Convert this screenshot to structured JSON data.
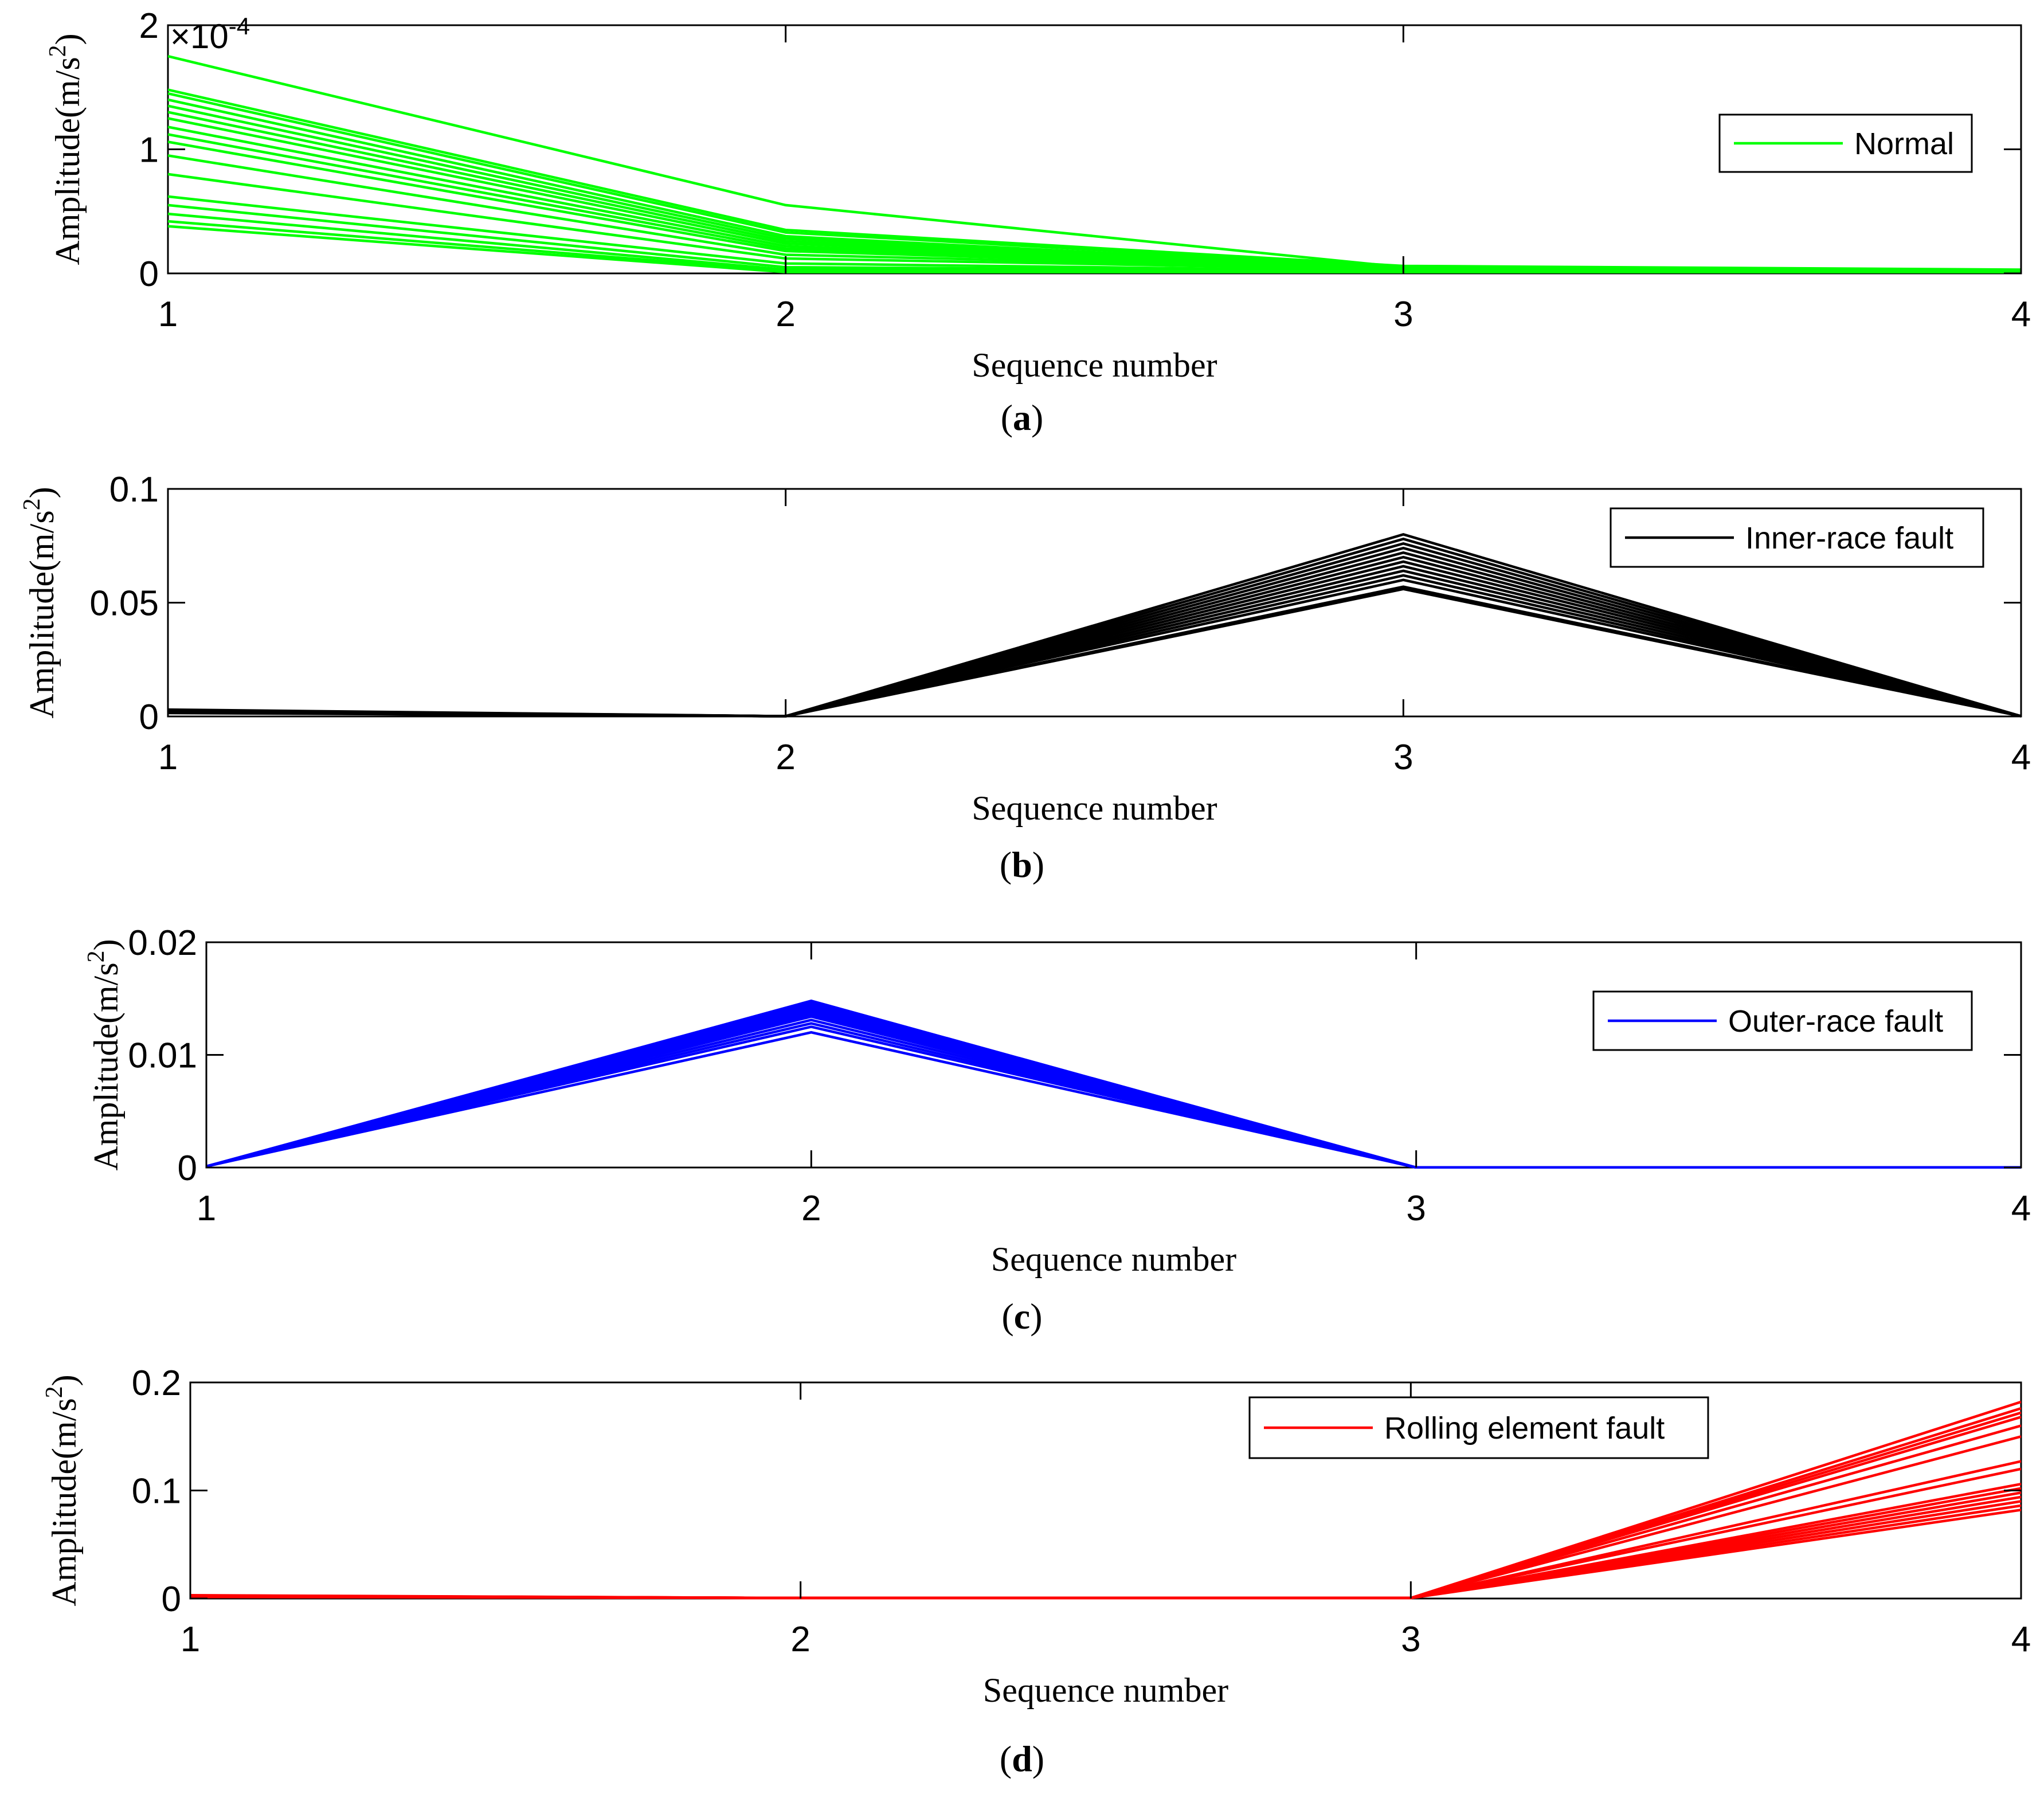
{
  "figure": {
    "captions": [
      {
        "open": "(",
        "letter": "a",
        "close": ")"
      },
      {
        "open": "(",
        "letter": "b",
        "close": ")"
      },
      {
        "open": "(",
        "letter": "c",
        "close": ")"
      },
      {
        "open": "(",
        "letter": "d",
        "close": ")"
      }
    ]
  },
  "chart_data": [
    {
      "type": "line",
      "panel": "a",
      "title": "",
      "xlabel": "Sequence number",
      "ylabel": {
        "prefix": "Amplitude(m/s",
        "sup": "2",
        "suffix": ")"
      },
      "x": [
        1,
        2,
        3,
        4
      ],
      "xticks": [
        "1",
        "2",
        "3",
        "4"
      ],
      "ylim": [
        0,
        0.0002
      ],
      "yticks": [
        {
          "v": 0,
          "label": "0"
        },
        {
          "v": 0.0001,
          "label": "1"
        },
        {
          "v": 0.0002,
          "label": "2"
        }
      ],
      "y_exponent": {
        "base": "×10",
        "power": "-4"
      },
      "legend": {
        "label": "Normal",
        "position": "top-right"
      },
      "color": "#00ff00",
      "series": [
        {
          "values": [
            0.000175,
            5.5e-05,
            5e-06,
            2e-06
          ]
        },
        {
          "values": [
            0.000148,
            3.5e-05,
            6e-06,
            3e-06
          ]
        },
        {
          "values": [
            0.000145,
            3.3e-05,
            5e-06,
            2e-06
          ]
        },
        {
          "values": [
            0.00014,
            3e-05,
            4e-06,
            2e-06
          ]
        },
        {
          "values": [
            0.000135,
            2.8e-05,
            5e-06,
            2e-06
          ]
        },
        {
          "values": [
            0.00013,
            2.6e-05,
            4e-06,
            2e-06
          ]
        },
        {
          "values": [
            0.000125,
            2.4e-05,
            4e-06,
            2e-06
          ]
        },
        {
          "values": [
            0.000118,
            2.2e-05,
            3e-06,
            2e-06
          ]
        },
        {
          "values": [
            0.000112,
            2e-05,
            4e-06,
            2e-06
          ]
        },
        {
          "values": [
            0.000106,
            1.8e-05,
            3e-06,
            1e-06
          ]
        },
        {
          "values": [
            9.5e-05,
            1.5e-05,
            3e-06,
            1e-06
          ]
        },
        {
          "values": [
            8e-05,
            1.2e-05,
            3e-06,
            1e-06
          ]
        },
        {
          "values": [
            6.2e-05,
            8e-06,
            2e-06,
            1e-06
          ]
        },
        {
          "values": [
            5.5e-05,
            5e-06,
            2e-06,
            1e-06
          ]
        },
        {
          "values": [
            4.8e-05,
            3e-06,
            2e-06,
            1e-06
          ]
        },
        {
          "values": [
            4.2e-05,
            2e-06,
            1e-06,
            1e-06
          ]
        },
        {
          "values": [
            3.8e-05,
            1e-06,
            1e-06,
            1e-06
          ]
        }
      ]
    },
    {
      "type": "line",
      "panel": "b",
      "title": "",
      "xlabel": "Sequence number",
      "ylabel": {
        "prefix": "Amplitude(m/s",
        "sup": "2",
        "suffix": ")"
      },
      "x": [
        1,
        2,
        3,
        4
      ],
      "xticks": [
        "1",
        "2",
        "3",
        "4"
      ],
      "ylim": [
        0,
        0.1
      ],
      "yticks": [
        {
          "v": 0,
          "label": "0"
        },
        {
          "v": 0.05,
          "label": "0.05"
        },
        {
          "v": 0.1,
          "label": "0.1"
        }
      ],
      "legend": {
        "label": "Inner-race fault",
        "position": "top-right"
      },
      "color": "#000000",
      "series": [
        {
          "values": [
            0.003,
            0.0001,
            0.08,
            0.0001
          ]
        },
        {
          "values": [
            0.0028,
            0.0001,
            0.078,
            0.0001
          ]
        },
        {
          "values": [
            0.0026,
            0.0001,
            0.076,
            0.0001
          ]
        },
        {
          "values": [
            0.0025,
            0.0001,
            0.074,
            0.0001
          ]
        },
        {
          "values": [
            0.0024,
            0.0001,
            0.072,
            0.0001
          ]
        },
        {
          "values": [
            0.0022,
            0.0001,
            0.07,
            0.0001
          ]
        },
        {
          "values": [
            0.0021,
            0.0001,
            0.068,
            0.0001
          ]
        },
        {
          "values": [
            0.002,
            0.0001,
            0.066,
            0.0001
          ]
        },
        {
          "values": [
            0.0019,
            0.0001,
            0.064,
            0.0001
          ]
        },
        {
          "values": [
            0.0018,
            0.0001,
            0.062,
            0.0001
          ]
        },
        {
          "values": [
            0.0017,
            0.0001,
            0.06,
            0.0001
          ]
        },
        {
          "values": [
            0.0016,
            0.0001,
            0.057,
            0.0001
          ]
        },
        {
          "values": [
            0.0015,
            0.0001,
            0.056,
            0.0001
          ]
        }
      ]
    },
    {
      "type": "line",
      "panel": "c",
      "title": "",
      "xlabel": "Sequence number",
      "ylabel": {
        "prefix": "Amplitude(m/s",
        "sup": "2",
        "suffix": ")"
      },
      "x": [
        1,
        2,
        3,
        4
      ],
      "xticks": [
        "1",
        "2",
        "3",
        "4"
      ],
      "ylim": [
        0,
        0.02
      ],
      "yticks": [
        {
          "v": 0,
          "label": "0"
        },
        {
          "v": 0.01,
          "label": "0.01"
        },
        {
          "v": 0.02,
          "label": "0.02"
        }
      ],
      "legend": {
        "label": "Outer-race fault",
        "position": "top-right"
      },
      "color": "#0000ff",
      "series": [
        {
          "values": [
            0.0001,
            0.0148,
            0.0,
            0.0
          ]
        },
        {
          "values": [
            0.0001,
            0.0146,
            0.0,
            0.0
          ]
        },
        {
          "values": [
            0.0001,
            0.0144,
            0.0,
            0.0
          ]
        },
        {
          "values": [
            0.0001,
            0.0142,
            0.0,
            0.0
          ]
        },
        {
          "values": [
            0.0001,
            0.014,
            0.0,
            0.0
          ]
        },
        {
          "values": [
            0.0001,
            0.0138,
            0.0,
            0.0
          ]
        },
        {
          "values": [
            0.0001,
            0.0136,
            0.0,
            0.0
          ]
        },
        {
          "values": [
            0.0001,
            0.0134,
            0.0,
            0.0
          ]
        },
        {
          "values": [
            0.0001,
            0.0131,
            0.0,
            0.0
          ]
        },
        {
          "values": [
            0.0001,
            0.0128,
            0.0,
            0.0
          ]
        },
        {
          "values": [
            0.0001,
            0.0125,
            0.0,
            0.0
          ]
        },
        {
          "values": [
            0.0001,
            0.012,
            0.0,
            0.0
          ]
        }
      ]
    },
    {
      "type": "line",
      "panel": "d",
      "title": "",
      "xlabel": "Sequence number",
      "ylabel": {
        "prefix": "Amplitude(m/s",
        "sup": "2",
        "suffix": ")"
      },
      "x": [
        1,
        2,
        3,
        4
      ],
      "xticks": [
        "1",
        "2",
        "3",
        "4"
      ],
      "ylim": [
        0,
        0.2
      ],
      "yticks": [
        {
          "v": 0,
          "label": "0"
        },
        {
          "v": 0.1,
          "label": "0.1"
        },
        {
          "v": 0.2,
          "label": "0.2"
        }
      ],
      "legend": {
        "label": "Rolling element fault",
        "position": "top-center"
      },
      "color": "#ff0000",
      "series": [
        {
          "values": [
            0.003,
            0.0005,
            0.0005,
            0.182
          ]
        },
        {
          "values": [
            0.0028,
            0.0005,
            0.0005,
            0.176
          ]
        },
        {
          "values": [
            0.0027,
            0.0005,
            0.0005,
            0.172
          ]
        },
        {
          "values": [
            0.0026,
            0.0005,
            0.0005,
            0.168
          ]
        },
        {
          "values": [
            0.0025,
            0.0005,
            0.0005,
            0.16
          ]
        },
        {
          "values": [
            0.0024,
            0.0005,
            0.0005,
            0.15
          ]
        },
        {
          "values": [
            0.0023,
            0.0005,
            0.0005,
            0.127
          ]
        },
        {
          "values": [
            0.0022,
            0.0005,
            0.0005,
            0.12
          ]
        },
        {
          "values": [
            0.0021,
            0.0005,
            0.0005,
            0.106
          ]
        },
        {
          "values": [
            0.002,
            0.0005,
            0.0005,
            0.102
          ]
        },
        {
          "values": [
            0.0019,
            0.0005,
            0.0005,
            0.098
          ]
        },
        {
          "values": [
            0.0018,
            0.0005,
            0.0005,
            0.094
          ]
        },
        {
          "values": [
            0.0017,
            0.0005,
            0.0005,
            0.09
          ]
        },
        {
          "values": [
            0.0016,
            0.0005,
            0.0005,
            0.086
          ]
        },
        {
          "values": [
            0.0015,
            0.0005,
            0.0005,
            0.082
          ]
        }
      ]
    }
  ]
}
